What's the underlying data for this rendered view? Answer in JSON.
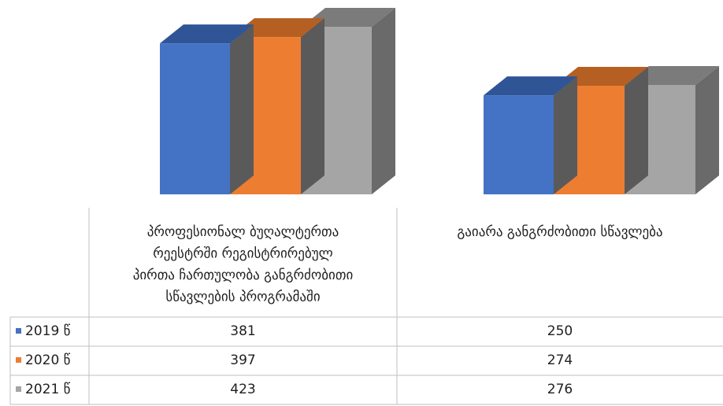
{
  "chart_data": {
    "type": "bar",
    "style": "3d-clustered-column-with-data-table",
    "categories": [
      "პროფესიონალ ბუღალტერთა რეესტრში რეგისტრირებულ პირთა ჩართულობა განგრძობითი სწავლების პროგრამაში",
      "გაიარა განგრძობითი სწავლება"
    ],
    "category_lines": [
      [
        "პროფესიონალ ბუღალტერთა",
        "რეესტრში რეგისტრირებულ",
        "პირთა ჩართულობა განგრძობითი",
        "სწავლების პროგრამაში"
      ],
      [
        "გაიარა განგრძობითი სწავლება"
      ]
    ],
    "series": [
      {
        "name": "2019 წ",
        "values": [
          381,
          250
        ],
        "color": "#4472C4",
        "top_color": "#2F5597",
        "side_color": "#5A5A5A"
      },
      {
        "name": "2020 წ",
        "values": [
          397,
          274
        ],
        "color": "#ED7D31",
        "top_color": "#B65F23",
        "side_color": "#5A5A5A"
      },
      {
        "name": "2021 წ",
        "values": [
          423,
          276
        ],
        "color": "#A5A5A5",
        "top_color": "#7B7B7B",
        "side_color": "#6A6A6A"
      }
    ],
    "value_labels": [
      [
        "381",
        "250"
      ],
      [
        "397",
        "274"
      ],
      [
        "423",
        "276"
      ]
    ],
    "ylim": [
      0,
      450
    ],
    "legend_placement": "data-table",
    "grid": false,
    "table_border_color": "#BFBFBF"
  }
}
